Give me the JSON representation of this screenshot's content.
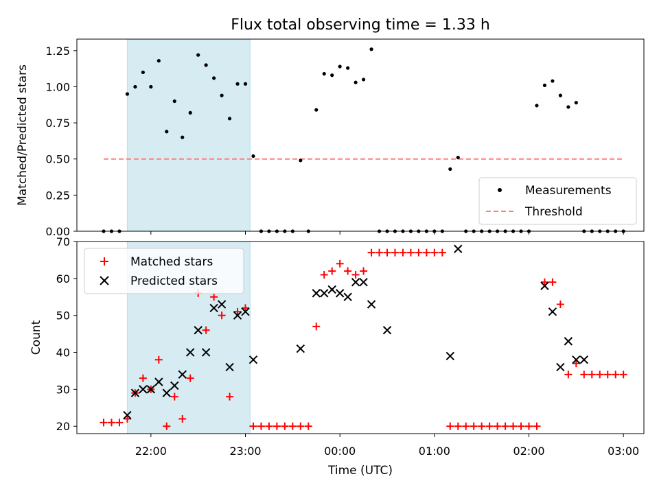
{
  "chart_data": [
    {
      "type": "scatter",
      "title": "Flux total observing time = 1.33 h",
      "xlabel": "",
      "ylabel": "Matched/Predicted stars",
      "ylim": [
        0,
        1.33
      ],
      "yticks": [
        "0.00",
        "0.25",
        "0.50",
        "0.75",
        "1.00",
        "1.25"
      ],
      "grid": false,
      "legend_position": "lower-right",
      "shaded_interval": [
        "21:45",
        "23:03"
      ],
      "series": [
        {
          "name": "Measurements",
          "marker": "dot",
          "color": "#000000",
          "x": [
            "21:30",
            "21:35",
            "21:40",
            "21:45",
            "21:50",
            "21:55",
            "22:00",
            "22:05",
            "22:10",
            "22:15",
            "22:20",
            "22:25",
            "22:30",
            "22:35",
            "22:40",
            "22:45",
            "22:50",
            "22:55",
            "23:00",
            "23:05",
            "23:10",
            "23:15",
            "23:20",
            "23:25",
            "23:30",
            "23:35",
            "23:40",
            "23:45",
            "23:50",
            "23:55",
            "00:00",
            "00:05",
            "00:10",
            "00:15",
            "00:20",
            "00:25",
            "00:30",
            "00:35",
            "00:40",
            "00:45",
            "00:50",
            "00:55",
            "01:00",
            "01:05",
            "01:10",
            "01:15",
            "01:20",
            "01:25",
            "01:30",
            "01:35",
            "01:40",
            "01:45",
            "01:50",
            "01:55",
            "02:00",
            "02:05",
            "02:10",
            "02:15",
            "02:20",
            "02:25",
            "02:30",
            "02:35",
            "02:40",
            "02:45",
            "02:50",
            "02:55",
            "03:00"
          ],
          "y": [
            0,
            0,
            0,
            0.95,
            1.0,
            1.1,
            1.0,
            1.18,
            0.69,
            0.9,
            0.65,
            0.82,
            1.22,
            1.15,
            1.06,
            0.94,
            0.78,
            1.02,
            1.02,
            0.52,
            0,
            0,
            0,
            0,
            0,
            0.49,
            0,
            0.84,
            1.09,
            1.08,
            1.14,
            1.13,
            1.03,
            1.05,
            1.26,
            0,
            0,
            0,
            0,
            0,
            0,
            0,
            0,
            0,
            0.43,
            0.51,
            0,
            0,
            0,
            0,
            0,
            0,
            0,
            0,
            0,
            0.87,
            1.01,
            1.04,
            0.94,
            0.86,
            0.89,
            0,
            0,
            0,
            0,
            0,
            0
          ]
        },
        {
          "name": "Threshold",
          "marker": "dashed-line",
          "color": "#ff7f7f",
          "x": [
            "21:30",
            "03:00"
          ],
          "y": [
            0.5,
            0.5
          ]
        }
      ]
    },
    {
      "type": "scatter",
      "title": "",
      "xlabel": "Time (UTC)",
      "ylabel": "Count",
      "ylim": [
        18,
        70
      ],
      "yticks": [
        "20",
        "30",
        "40",
        "50",
        "60",
        "70"
      ],
      "xticks": [
        "22:00",
        "23:00",
        "00:00",
        "01:00",
        "02:00",
        "03:00"
      ],
      "grid": false,
      "legend_position": "upper-left",
      "shaded_interval": [
        "21:45",
        "23:03"
      ],
      "series": [
        {
          "name": "Matched stars",
          "marker": "plus",
          "color": "#ff0000",
          "x": [
            "21:30",
            "21:35",
            "21:40",
            "21:45",
            "21:50",
            "21:55",
            "22:00",
            "22:05",
            "22:10",
            "22:15",
            "22:20",
            "22:25",
            "22:30",
            "22:35",
            "22:40",
            "22:45",
            "22:50",
            "22:55",
            "23:00",
            "23:05",
            "23:10",
            "23:15",
            "23:20",
            "23:25",
            "23:30",
            "23:35",
            "23:40",
            "23:45",
            "23:50",
            "23:55",
            "00:00",
            "00:05",
            "00:10",
            "00:15",
            "00:20",
            "00:25",
            "00:30",
            "00:35",
            "00:40",
            "00:45",
            "00:50",
            "00:55",
            "01:00",
            "01:05",
            "01:10",
            "01:15",
            "01:20",
            "01:25",
            "01:30",
            "01:35",
            "01:40",
            "01:45",
            "01:50",
            "01:55",
            "02:00",
            "02:05",
            "02:10",
            "02:15",
            "02:20",
            "02:25",
            "02:30",
            "02:35",
            "02:40",
            "02:45",
            "02:50",
            "02:55",
            "03:00"
          ],
          "y": [
            21,
            21,
            21,
            22,
            29,
            33,
            30,
            38,
            20,
            28,
            22,
            33,
            56,
            46,
            55,
            50,
            28,
            51,
            52,
            20,
            20,
            20,
            20,
            20,
            20,
            20,
            20,
            47,
            61,
            62,
            64,
            62,
            61,
            62,
            67,
            67,
            67,
            67,
            67,
            67,
            67,
            67,
            67,
            67,
            20,
            20,
            20,
            20,
            20,
            20,
            20,
            20,
            20,
            20,
            20,
            20,
            59,
            59,
            53,
            34,
            37,
            34,
            34,
            34,
            34,
            34,
            34
          ]
        },
        {
          "name": "Predicted stars",
          "marker": "x",
          "color": "#000000",
          "x": [
            "21:45",
            "21:50",
            "21:55",
            "22:00",
            "22:05",
            "22:10",
            "22:15",
            "22:20",
            "22:25",
            "22:30",
            "22:35",
            "22:40",
            "22:45",
            "22:50",
            "22:55",
            "23:00",
            "23:05",
            "23:35",
            "23:45",
            "23:50",
            "23:55",
            "00:00",
            "00:05",
            "00:10",
            "00:15",
            "00:20",
            "00:30",
            "01:10",
            "01:15",
            "02:10",
            "02:15",
            "02:20",
            "02:25",
            "02:30",
            "02:35"
          ],
          "y": [
            23,
            29,
            30,
            30,
            32,
            29,
            31,
            34,
            40,
            46,
            40,
            52,
            53,
            36,
            50,
            51,
            38,
            41,
            56,
            56,
            57,
            56,
            55,
            59,
            59,
            53,
            46,
            39,
            68,
            58,
            51,
            36,
            43,
            38,
            38
          ]
        }
      ]
    }
  ]
}
